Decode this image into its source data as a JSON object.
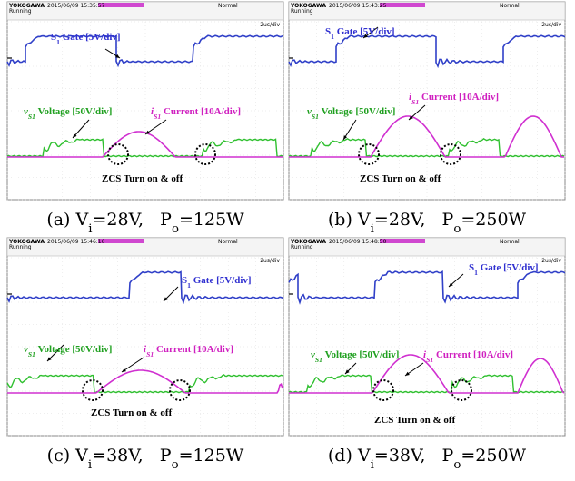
{
  "panels": [
    {
      "scope": {
        "brand": "YOKOGAWA",
        "status": "Running",
        "timestamp": "2015/06/09 15:35:57",
        "mode": "Normal",
        "timebase": "2us/div"
      },
      "gate_label": [
        {
          "text": "S"
        },
        {
          "text": "1",
          "sub": true
        },
        {
          "text": " Gate [5V/div]"
        }
      ],
      "voltage_label": [
        {
          "text": "v",
          "italic": true
        },
        {
          "text": "S1",
          "sub": true,
          "italic": true
        },
        {
          "text": " Voltage [50V/div]"
        }
      ],
      "current_label": [
        {
          "text": "i",
          "italic": true
        },
        {
          "text": "S1",
          "sub": true,
          "italic": true
        },
        {
          "text": " Current [10A/div]"
        }
      ],
      "zcs_label": "ZCS Turn on & off",
      "caption": [
        {
          "text": "(a) V"
        },
        {
          "text": "i",
          "sub": true
        },
        {
          "text": "=28V,   P"
        },
        {
          "text": "o",
          "sub": true
        },
        {
          "text": "=125W"
        }
      ]
    },
    {
      "scope": {
        "brand": "YOKOGAWA",
        "status": "Running",
        "timestamp": "2015/06/09 15:43:25",
        "mode": "Normal",
        "timebase": "2us/div"
      },
      "gate_label": [
        {
          "text": "S"
        },
        {
          "text": "1",
          "sub": true
        },
        {
          "text": " Gate [5V/div]"
        }
      ],
      "voltage_label": [
        {
          "text": "v",
          "italic": true
        },
        {
          "text": "S1",
          "sub": true,
          "italic": true
        },
        {
          "text": " Voltage [50V/div]"
        }
      ],
      "current_label": [
        {
          "text": "i",
          "italic": true
        },
        {
          "text": "S1",
          "sub": true,
          "italic": true
        },
        {
          "text": " Current [10A/div]"
        }
      ],
      "zcs_label": "ZCS Turn on & off",
      "caption": [
        {
          "text": "(b) V"
        },
        {
          "text": "i",
          "sub": true
        },
        {
          "text": "=28V,   P"
        },
        {
          "text": "o",
          "sub": true
        },
        {
          "text": "=250W"
        }
      ]
    },
    {
      "scope": {
        "brand": "YOKOGAWA",
        "status": "Running",
        "timestamp": "2015/06/09 15:46:16",
        "mode": "Normal",
        "timebase": "2us/div"
      },
      "gate_label": [
        {
          "text": "S"
        },
        {
          "text": "1",
          "sub": true
        },
        {
          "text": " Gate [5V/div]"
        }
      ],
      "voltage_label": [
        {
          "text": "v",
          "italic": true
        },
        {
          "text": "S1",
          "sub": true,
          "italic": true
        },
        {
          "text": " Voltage [50V/div]"
        }
      ],
      "current_label": [
        {
          "text": "i",
          "italic": true
        },
        {
          "text": "S1",
          "sub": true,
          "italic": true
        },
        {
          "text": " Current [10A/div]"
        }
      ],
      "zcs_label": "ZCS Turn on & off",
      "caption": [
        {
          "text": "(c) V"
        },
        {
          "text": "i",
          "sub": true
        },
        {
          "text": "=38V,   P"
        },
        {
          "text": "o",
          "sub": true
        },
        {
          "text": "=125W"
        }
      ]
    },
    {
      "scope": {
        "brand": "YOKOGAWA",
        "status": "Running",
        "timestamp": "2015/06/09 15:48:50",
        "mode": "Normal",
        "timebase": "2us/div"
      },
      "gate_label": [
        {
          "text": "S"
        },
        {
          "text": "1",
          "sub": true
        },
        {
          "text": " Gate [5V/div]"
        }
      ],
      "voltage_label": [
        {
          "text": "v",
          "italic": true
        },
        {
          "text": "S1",
          "sub": true,
          "italic": true
        },
        {
          "text": " Voltage [50V/div]"
        }
      ],
      "current_label": [
        {
          "text": "i",
          "italic": true
        },
        {
          "text": "S1",
          "sub": true,
          "italic": true
        },
        {
          "text": " Current [10A/div]"
        }
      ],
      "zcs_label": "ZCS Turn on & off",
      "caption": [
        {
          "text": "(d) V"
        },
        {
          "text": "i",
          "sub": true
        },
        {
          "text": "=38V,   P"
        },
        {
          "text": "o",
          "sub": true
        },
        {
          "text": "=250W"
        }
      ]
    }
  ]
}
